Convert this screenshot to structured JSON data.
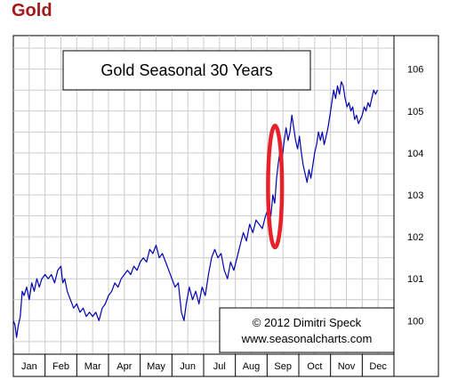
{
  "page": {
    "heading": "Gold"
  },
  "colors": {
    "heading": "#a11a1a",
    "line": "#0000b3",
    "highlight": "#e8202a",
    "grid": "#cccccc"
  },
  "chart_data": {
    "type": "line",
    "title": "Gold Seasonal 30 Years",
    "copyright_line1": "© 2012 Dimitri Speck",
    "copyright_line2": "www.seasonalcharts.com",
    "xlabel": "",
    "ylabel": "",
    "ylim": [
      99.2,
      106.8
    ],
    "y_ticks": [
      100,
      101,
      102,
      103,
      104,
      105,
      106
    ],
    "x_range": [
      0,
      12
    ],
    "months": [
      "Jan",
      "Feb",
      "Mar",
      "Apr",
      "May",
      "Jun",
      "Jul",
      "Aug",
      "Sep",
      "Oct",
      "Nov",
      "Dec"
    ],
    "grid": true,
    "highlight": {
      "label": "",
      "x_center": 8.25,
      "y_center": 103.2,
      "x_radius": 0.22,
      "y_radius": 1.45
    },
    "series": [
      {
        "name": "",
        "points": [
          [
            0.0,
            100.0
          ],
          [
            0.05,
            99.9
          ],
          [
            0.1,
            99.6
          ],
          [
            0.16,
            99.9
          ],
          [
            0.22,
            100.1
          ],
          [
            0.28,
            100.7
          ],
          [
            0.34,
            100.6
          ],
          [
            0.42,
            100.8
          ],
          [
            0.5,
            100.5
          ],
          [
            0.58,
            100.9
          ],
          [
            0.66,
            100.7
          ],
          [
            0.74,
            101.0
          ],
          [
            0.82,
            100.8
          ],
          [
            0.9,
            101.0
          ],
          [
            1.0,
            101.1
          ],
          [
            1.1,
            101.0
          ],
          [
            1.2,
            101.1
          ],
          [
            1.3,
            100.9
          ],
          [
            1.4,
            101.2
          ],
          [
            1.5,
            101.3
          ],
          [
            1.56,
            100.9
          ],
          [
            1.62,
            101.0
          ],
          [
            1.7,
            100.7
          ],
          [
            1.8,
            100.5
          ],
          [
            1.9,
            100.3
          ],
          [
            2.0,
            100.4
          ],
          [
            2.1,
            100.2
          ],
          [
            2.2,
            100.3
          ],
          [
            2.3,
            100.1
          ],
          [
            2.4,
            100.2
          ],
          [
            2.5,
            100.1
          ],
          [
            2.6,
            100.2
          ],
          [
            2.7,
            100.0
          ],
          [
            2.8,
            100.3
          ],
          [
            2.9,
            100.4
          ],
          [
            3.0,
            100.6
          ],
          [
            3.1,
            100.7
          ],
          [
            3.2,
            100.9
          ],
          [
            3.3,
            100.8
          ],
          [
            3.4,
            101.0
          ],
          [
            3.5,
            101.1
          ],
          [
            3.6,
            101.2
          ],
          [
            3.7,
            101.1
          ],
          [
            3.8,
            101.3
          ],
          [
            3.9,
            101.2
          ],
          [
            4.0,
            101.4
          ],
          [
            4.1,
            101.5
          ],
          [
            4.2,
            101.4
          ],
          [
            4.3,
            101.7
          ],
          [
            4.4,
            101.6
          ],
          [
            4.5,
            101.8
          ],
          [
            4.6,
            101.5
          ],
          [
            4.7,
            101.6
          ],
          [
            4.8,
            101.4
          ],
          [
            4.9,
            101.2
          ],
          [
            5.0,
            101.0
          ],
          [
            5.1,
            100.8
          ],
          [
            5.2,
            100.9
          ],
          [
            5.3,
            100.2
          ],
          [
            5.38,
            100.0
          ],
          [
            5.45,
            100.4
          ],
          [
            5.55,
            100.8
          ],
          [
            5.65,
            100.5
          ],
          [
            5.75,
            100.7
          ],
          [
            5.85,
            100.4
          ],
          [
            5.95,
            100.8
          ],
          [
            6.05,
            100.6
          ],
          [
            6.15,
            101.1
          ],
          [
            6.25,
            101.5
          ],
          [
            6.35,
            101.7
          ],
          [
            6.45,
            101.5
          ],
          [
            6.55,
            101.6
          ],
          [
            6.65,
            101.2
          ],
          [
            6.75,
            101.0
          ],
          [
            6.85,
            101.4
          ],
          [
            6.95,
            101.2
          ],
          [
            7.05,
            101.5
          ],
          [
            7.15,
            101.8
          ],
          [
            7.25,
            102.1
          ],
          [
            7.35,
            101.9
          ],
          [
            7.45,
            102.3
          ],
          [
            7.55,
            102.1
          ],
          [
            7.65,
            102.4
          ],
          [
            7.75,
            102.3
          ],
          [
            7.85,
            102.2
          ],
          [
            7.95,
            102.5
          ],
          [
            8.05,
            102.7
          ],
          [
            8.12,
            102.5
          ],
          [
            8.18,
            103.0
          ],
          [
            8.24,
            102.8
          ],
          [
            8.3,
            103.4
          ],
          [
            8.36,
            103.8
          ],
          [
            8.42,
            104.1
          ],
          [
            8.48,
            103.9
          ],
          [
            8.54,
            104.3
          ],
          [
            8.6,
            104.6
          ],
          [
            8.66,
            104.3
          ],
          [
            8.72,
            104.5
          ],
          [
            8.78,
            104.9
          ],
          [
            8.84,
            104.6
          ],
          [
            8.9,
            104.3
          ],
          [
            8.96,
            104.1
          ],
          [
            9.02,
            104.4
          ],
          [
            9.08,
            104.0
          ],
          [
            9.14,
            103.7
          ],
          [
            9.2,
            103.5
          ],
          [
            9.26,
            103.3
          ],
          [
            9.32,
            103.6
          ],
          [
            9.38,
            103.4
          ],
          [
            9.44,
            103.7
          ],
          [
            9.5,
            104.0
          ],
          [
            9.56,
            104.2
          ],
          [
            9.62,
            104.5
          ],
          [
            9.68,
            104.3
          ],
          [
            9.74,
            104.5
          ],
          [
            9.8,
            104.2
          ],
          [
            9.86,
            104.4
          ],
          [
            9.92,
            104.6
          ],
          [
            9.98,
            104.9
          ],
          [
            10.04,
            105.2
          ],
          [
            10.1,
            105.5
          ],
          [
            10.16,
            105.3
          ],
          [
            10.22,
            105.6
          ],
          [
            10.28,
            105.4
          ],
          [
            10.34,
            105.7
          ],
          [
            10.4,
            105.6
          ],
          [
            10.46,
            105.3
          ],
          [
            10.52,
            105.1
          ],
          [
            10.58,
            105.2
          ],
          [
            10.64,
            105.0
          ],
          [
            10.7,
            105.1
          ],
          [
            10.76,
            104.8
          ],
          [
            10.82,
            104.9
          ],
          [
            10.88,
            104.7
          ],
          [
            10.94,
            104.8
          ],
          [
            11.0,
            104.9
          ],
          [
            11.06,
            105.1
          ],
          [
            11.12,
            105.0
          ],
          [
            11.18,
            105.2
          ],
          [
            11.24,
            105.1
          ],
          [
            11.3,
            105.3
          ],
          [
            11.36,
            105.5
          ],
          [
            11.42,
            105.4
          ],
          [
            11.48,
            105.5
          ]
        ]
      }
    ]
  }
}
